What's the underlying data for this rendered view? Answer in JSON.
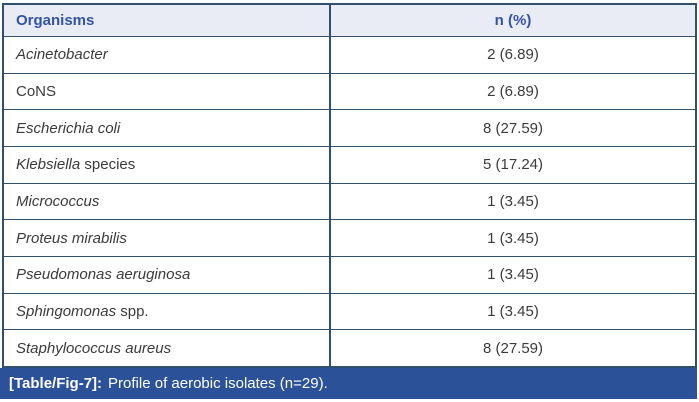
{
  "table": {
    "columns": [
      {
        "label": "Organisms"
      },
      {
        "label": "n (%)"
      }
    ],
    "rows": [
      {
        "organism_italic": "Acinetobacter",
        "organism_regular": "",
        "value": "2 (6.89)"
      },
      {
        "organism_italic": "",
        "organism_regular": "CoNS",
        "value": "2 (6.89)"
      },
      {
        "organism_italic": "Escherichia coli",
        "organism_regular": "",
        "value": "8 (27.59)"
      },
      {
        "organism_italic": "Klebsiella",
        "organism_regular": " species",
        "value": "5 (17.24)"
      },
      {
        "organism_italic": "Micrococcus",
        "organism_regular": "",
        "value": "1 (3.45)"
      },
      {
        "organism_italic": "Proteus mirabilis",
        "organism_regular": "",
        "value": "1 (3.45)"
      },
      {
        "organism_italic": "Pseudomonas aeruginosa",
        "organism_regular": "",
        "value": "1 (3.45)"
      },
      {
        "organism_italic": "Sphingomonas",
        "organism_regular": " spp.",
        "value": "1 (3.45)"
      },
      {
        "organism_italic": "Staphylococcus aureus",
        "organism_regular": "",
        "value": "8 (27.59)"
      }
    ]
  },
  "caption": {
    "label": "[Table/Fig-7]:",
    "text": "Profile of aerobic isolates (n=29)."
  },
  "colors": {
    "border": "#30506d",
    "header_bg": "#eaecf5",
    "header_text": "#3354a4",
    "body_text": "#3b3b3b",
    "caption_bar_bg": "#2b5198",
    "caption_text": "#ffffff"
  }
}
